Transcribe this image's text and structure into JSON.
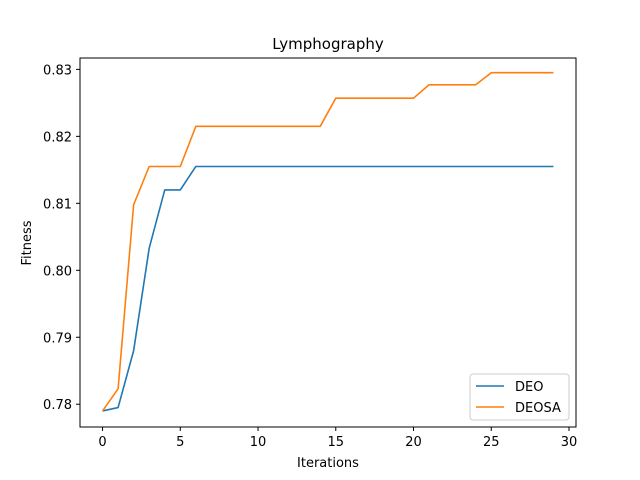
{
  "chart_data": {
    "type": "line",
    "title": "Lymphography",
    "xlabel": "Iterations",
    "ylabel": "Fitness",
    "xlim": [
      -1.45,
      30.45
    ],
    "ylim": [
      0.7766,
      0.8317
    ],
    "xticks": [
      0,
      5,
      10,
      15,
      20,
      25,
      30
    ],
    "yticks": [
      0.78,
      0.79,
      0.8,
      0.81,
      0.82,
      0.83
    ],
    "ytick_labels": [
      "0.78",
      "0.79",
      "0.80",
      "0.81",
      "0.82",
      "0.83"
    ],
    "grid": false,
    "legend_position": "lower right",
    "x": [
      0,
      1,
      2,
      3,
      4,
      5,
      6,
      7,
      8,
      9,
      10,
      11,
      12,
      13,
      14,
      15,
      16,
      17,
      18,
      19,
      20,
      21,
      22,
      23,
      24,
      25,
      26,
      27,
      28,
      29
    ],
    "series": [
      {
        "name": "DEO",
        "color": "#1f77b4",
        "values": [
          0.779,
          0.7795,
          0.788,
          0.8033,
          0.812,
          0.812,
          0.8155,
          0.8155,
          0.8155,
          0.8155,
          0.8155,
          0.8155,
          0.8155,
          0.8155,
          0.8155,
          0.8155,
          0.8155,
          0.8155,
          0.8155,
          0.8155,
          0.8155,
          0.8155,
          0.8155,
          0.8155,
          0.8155,
          0.8155,
          0.8155,
          0.8155,
          0.8155,
          0.8155
        ]
      },
      {
        "name": "DEOSA",
        "color": "#ff7f0e",
        "values": [
          0.779,
          0.7823,
          0.8098,
          0.8155,
          0.8155,
          0.8155,
          0.8215,
          0.8215,
          0.8215,
          0.8215,
          0.8215,
          0.8215,
          0.8215,
          0.8215,
          0.8215,
          0.8257,
          0.8257,
          0.8257,
          0.8257,
          0.8257,
          0.8257,
          0.8277,
          0.8277,
          0.8277,
          0.8277,
          0.8295,
          0.8295,
          0.8295,
          0.8295,
          0.8295
        ]
      }
    ]
  }
}
